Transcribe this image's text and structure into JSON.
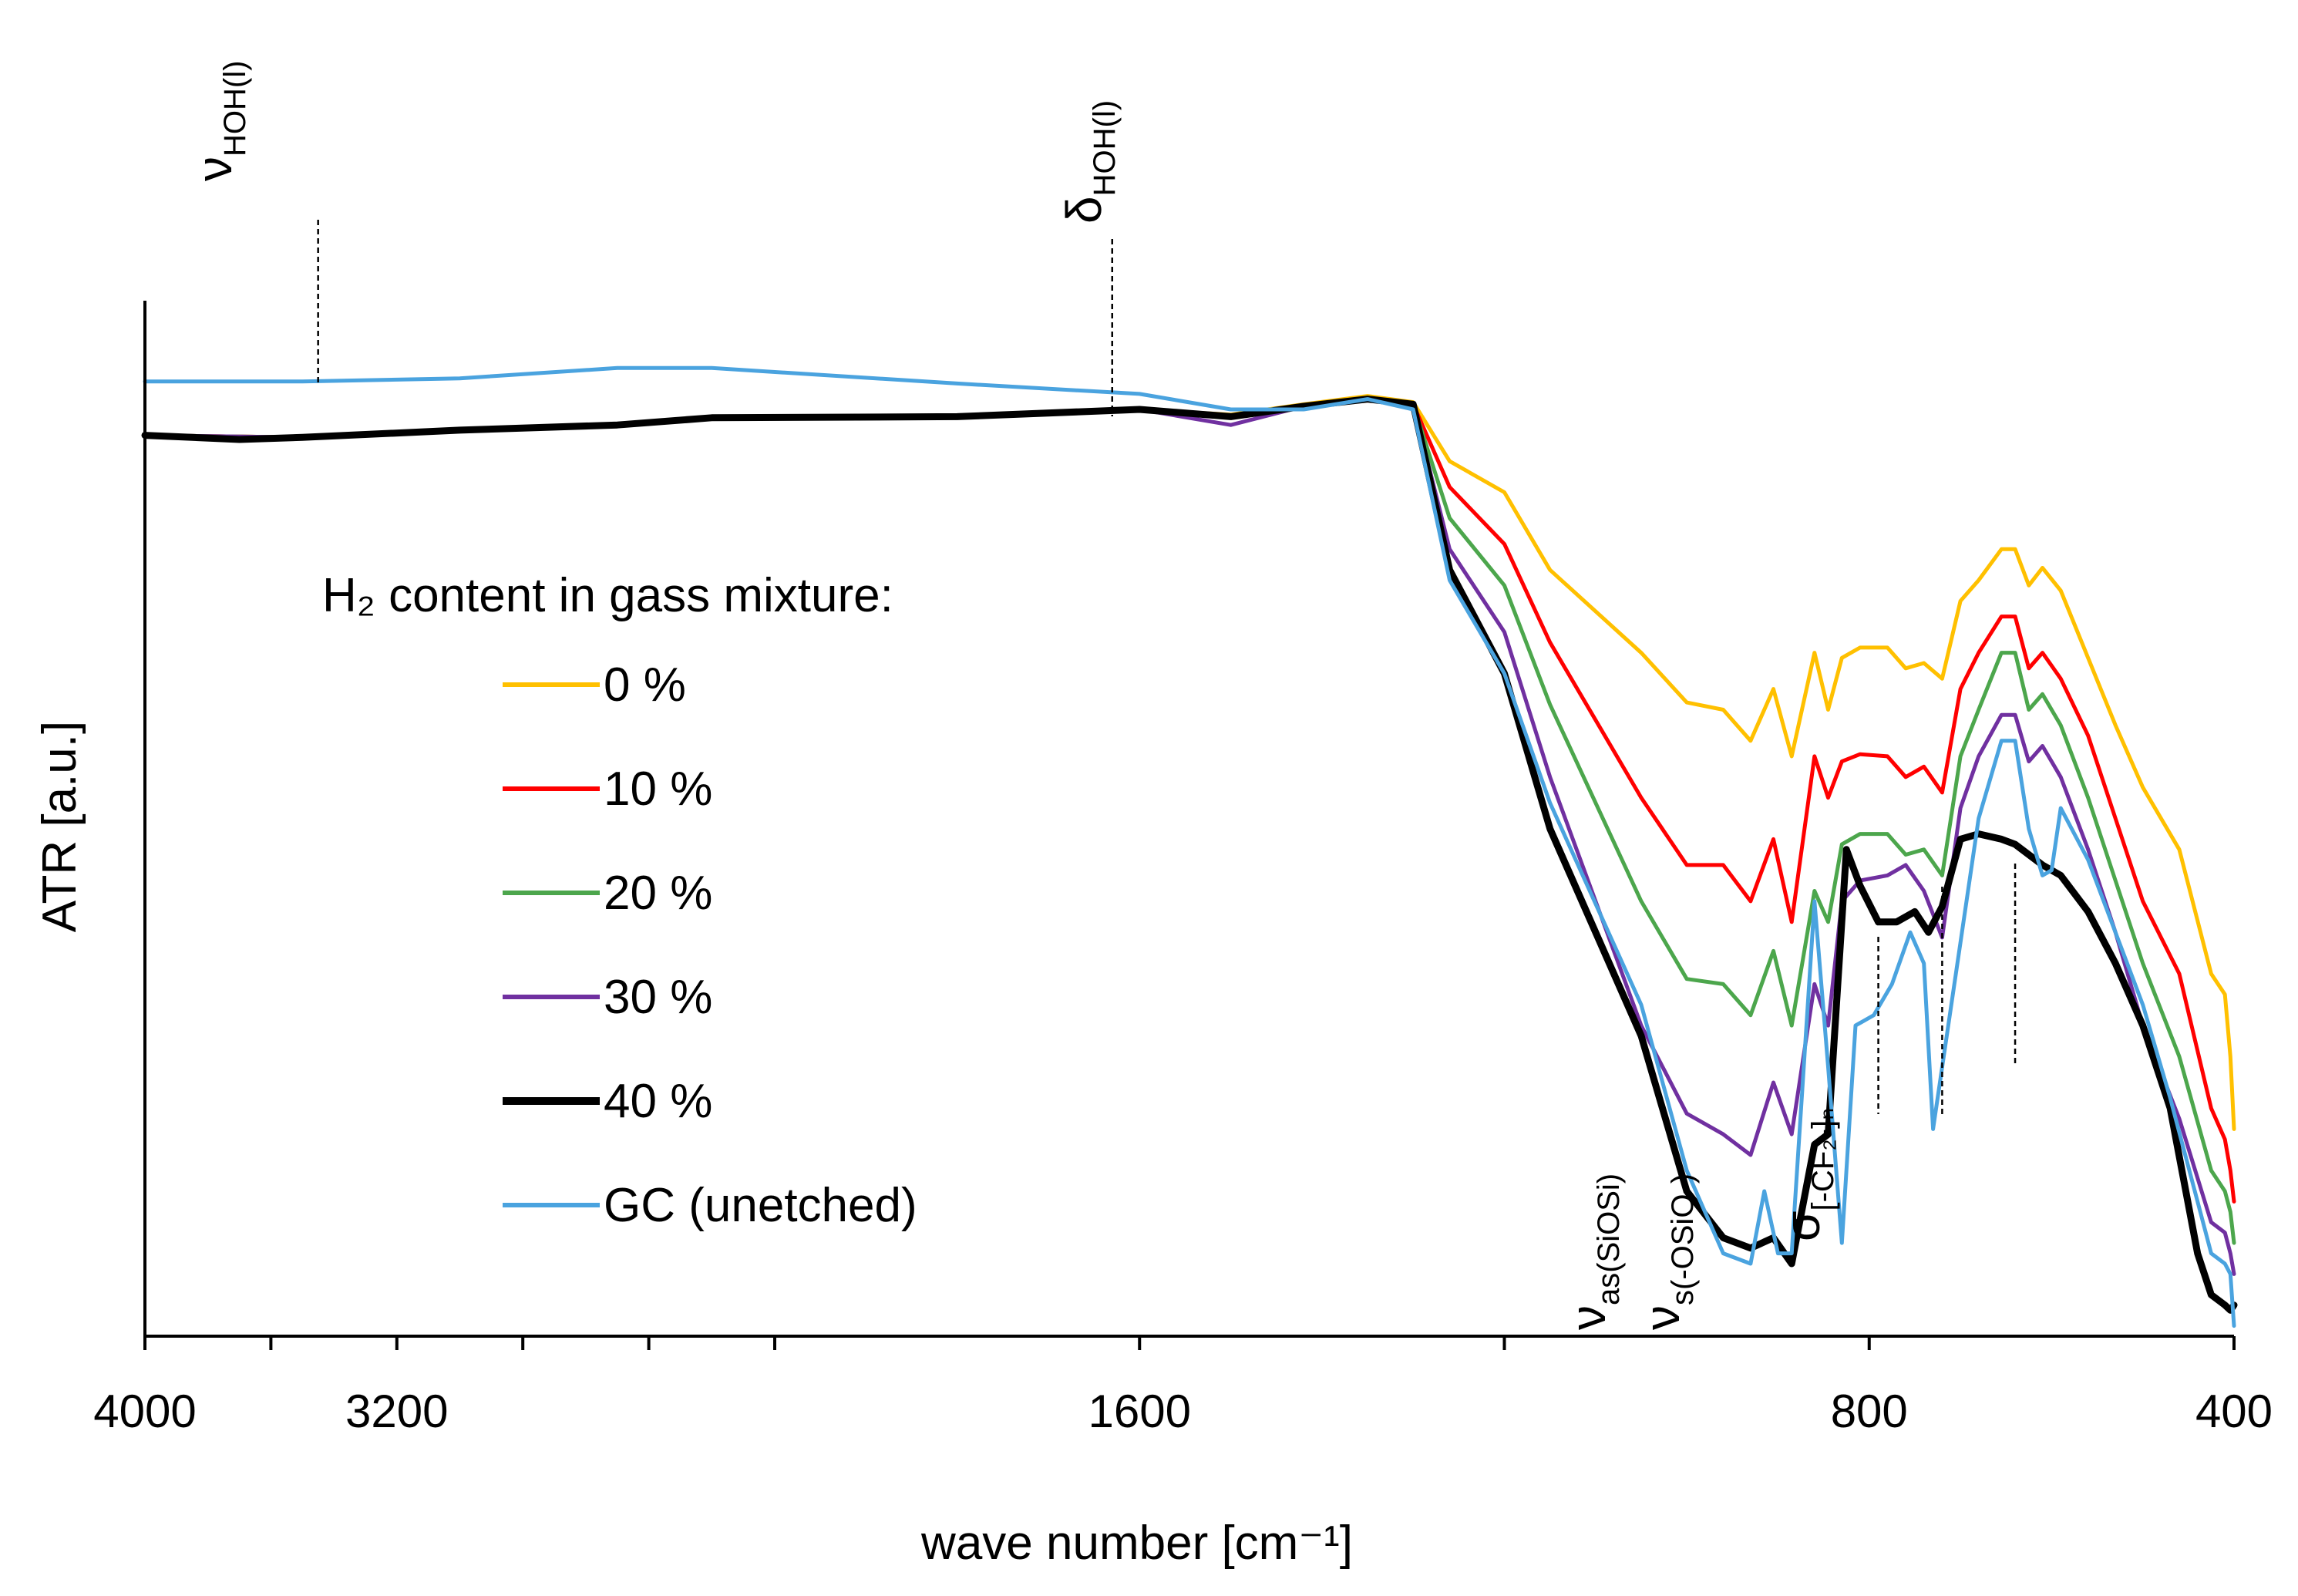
{
  "chart_data": {
    "type": "line",
    "title": "",
    "xlabel": "wave number [cm⁻¹]",
    "ylabel": "ATR [a.u.]",
    "xlim": [
      4000,
      400
    ],
    "ylim": [
      0,
      1
    ],
    "x_scale": "piecewise",
    "x_ticks": [
      4000,
      3200,
      1600,
      800,
      400
    ],
    "x_tick_labels": [
      "4000",
      "3200",
      "1600",
      "800",
      "400"
    ],
    "legend_title": "H₂ content in gass mixture:",
    "legend_position": "center-left",
    "annotations": [
      {
        "name": "nu-hoh",
        "main": "ν",
        "sub": "HOH(l)",
        "x": 3450
      },
      {
        "name": "delta-hoh",
        "main": "δ",
        "sub": "HOH(l)",
        "x": 1630
      },
      {
        "name": "nu-as-siosi",
        "main": "ν",
        "sub": "as(SiOSi)",
        "x": 790
      },
      {
        "name": "nu-s-osio",
        "main": "ν",
        "sub": "s(-OSiO-)",
        "x": 720
      },
      {
        "name": "sigma-cf2",
        "main": "σ",
        "sub": "[-CF₂-]ₙ",
        "x": 640
      }
    ],
    "series": [
      {
        "name": "0 %",
        "color": "#FFC000",
        "width": 5,
        "points": [
          [
            4000,
            0.87
          ],
          [
            3500,
            0.868
          ],
          [
            3000,
            0.875
          ],
          [
            2500,
            0.88
          ],
          [
            2200,
            0.887
          ],
          [
            1800,
            0.888
          ],
          [
            1600,
            0.895
          ],
          [
            1500,
            0.89
          ],
          [
            1420,
            0.9
          ],
          [
            1350,
            0.908
          ],
          [
            1300,
            0.902
          ],
          [
            1260,
            0.845
          ],
          [
            1200,
            0.815
          ],
          [
            1150,
            0.74
          ],
          [
            1050,
            0.66
          ],
          [
            1000,
            0.612
          ],
          [
            960,
            0.605
          ],
          [
            930,
            0.575
          ],
          [
            905,
            0.625
          ],
          [
            885,
            0.56
          ],
          [
            860,
            0.66
          ],
          [
            845,
            0.605
          ],
          [
            830,
            0.655
          ],
          [
            810,
            0.665
          ],
          [
            780,
            0.665
          ],
          [
            760,
            0.645
          ],
          [
            740,
            0.65
          ],
          [
            720,
            0.635
          ],
          [
            700,
            0.71
          ],
          [
            680,
            0.73
          ],
          [
            655,
            0.76
          ],
          [
            640,
            0.76
          ],
          [
            625,
            0.725
          ],
          [
            610,
            0.742
          ],
          [
            590,
            0.72
          ],
          [
            560,
            0.655
          ],
          [
            530,
            0.59
          ],
          [
            500,
            0.53
          ],
          [
            460,
            0.47
          ],
          [
            425,
            0.35
          ],
          [
            410,
            0.33
          ],
          [
            404,
            0.27
          ],
          [
            400,
            0.2
          ]
        ]
      },
      {
        "name": "10 %",
        "color": "#FF0000",
        "width": 5,
        "points": [
          [
            4000,
            0.87
          ],
          [
            3500,
            0.868
          ],
          [
            3000,
            0.875
          ],
          [
            2500,
            0.88
          ],
          [
            2200,
            0.887
          ],
          [
            1800,
            0.888
          ],
          [
            1600,
            0.895
          ],
          [
            1500,
            0.888
          ],
          [
            1420,
            0.898
          ],
          [
            1350,
            0.905
          ],
          [
            1300,
            0.9
          ],
          [
            1260,
            0.82
          ],
          [
            1200,
            0.765
          ],
          [
            1150,
            0.67
          ],
          [
            1050,
            0.52
          ],
          [
            1000,
            0.455
          ],
          [
            960,
            0.455
          ],
          [
            930,
            0.42
          ],
          [
            905,
            0.48
          ],
          [
            885,
            0.4
          ],
          [
            860,
            0.56
          ],
          [
            845,
            0.52
          ],
          [
            830,
            0.555
          ],
          [
            810,
            0.562
          ],
          [
            780,
            0.56
          ],
          [
            760,
            0.54
          ],
          [
            740,
            0.55
          ],
          [
            720,
            0.525
          ],
          [
            700,
            0.625
          ],
          [
            680,
            0.66
          ],
          [
            655,
            0.695
          ],
          [
            640,
            0.695
          ],
          [
            625,
            0.645
          ],
          [
            610,
            0.66
          ],
          [
            590,
            0.635
          ],
          [
            560,
            0.58
          ],
          [
            530,
            0.5
          ],
          [
            500,
            0.42
          ],
          [
            460,
            0.35
          ],
          [
            425,
            0.22
          ],
          [
            410,
            0.19
          ],
          [
            404,
            0.16
          ],
          [
            400,
            0.13
          ]
        ]
      },
      {
        "name": "20 %",
        "color": "#4CA64C",
        "width": 5,
        "points": [
          [
            4000,
            0.87
          ],
          [
            3500,
            0.868
          ],
          [
            3000,
            0.875
          ],
          [
            2500,
            0.88
          ],
          [
            2200,
            0.887
          ],
          [
            1800,
            0.888
          ],
          [
            1600,
            0.895
          ],
          [
            1500,
            0.888
          ],
          [
            1420,
            0.898
          ],
          [
            1350,
            0.905
          ],
          [
            1300,
            0.9
          ],
          [
            1260,
            0.79
          ],
          [
            1200,
            0.725
          ],
          [
            1150,
            0.61
          ],
          [
            1050,
            0.42
          ],
          [
            1000,
            0.345
          ],
          [
            960,
            0.34
          ],
          [
            930,
            0.31
          ],
          [
            905,
            0.372
          ],
          [
            885,
            0.3
          ],
          [
            860,
            0.43
          ],
          [
            845,
            0.4
          ],
          [
            830,
            0.475
          ],
          [
            810,
            0.485
          ],
          [
            780,
            0.485
          ],
          [
            760,
            0.465
          ],
          [
            740,
            0.47
          ],
          [
            720,
            0.445
          ],
          [
            700,
            0.56
          ],
          [
            680,
            0.605
          ],
          [
            655,
            0.66
          ],
          [
            640,
            0.66
          ],
          [
            625,
            0.605
          ],
          [
            610,
            0.62
          ],
          [
            590,
            0.59
          ],
          [
            560,
            0.52
          ],
          [
            530,
            0.44
          ],
          [
            500,
            0.36
          ],
          [
            460,
            0.27
          ],
          [
            425,
            0.16
          ],
          [
            410,
            0.14
          ],
          [
            404,
            0.12
          ],
          [
            400,
            0.09
          ]
        ]
      },
      {
        "name": "30 %",
        "color": "#7030A0",
        "width": 5,
        "points": [
          [
            4000,
            0.87
          ],
          [
            3500,
            0.868
          ],
          [
            3000,
            0.875
          ],
          [
            2500,
            0.88
          ],
          [
            2200,
            0.887
          ],
          [
            1800,
            0.888
          ],
          [
            1600,
            0.895
          ],
          [
            1500,
            0.88
          ],
          [
            1420,
            0.898
          ],
          [
            1350,
            0.905
          ],
          [
            1300,
            0.9
          ],
          [
            1260,
            0.76
          ],
          [
            1200,
            0.68
          ],
          [
            1150,
            0.54
          ],
          [
            1050,
            0.3
          ],
          [
            1000,
            0.215
          ],
          [
            960,
            0.195
          ],
          [
            930,
            0.175
          ],
          [
            905,
            0.245
          ],
          [
            885,
            0.195
          ],
          [
            860,
            0.34
          ],
          [
            845,
            0.3
          ],
          [
            830,
            0.42
          ],
          [
            810,
            0.44
          ],
          [
            780,
            0.445
          ],
          [
            760,
            0.455
          ],
          [
            740,
            0.43
          ],
          [
            720,
            0.385
          ],
          [
            700,
            0.51
          ],
          [
            680,
            0.56
          ],
          [
            655,
            0.6
          ],
          [
            640,
            0.6
          ],
          [
            625,
            0.555
          ],
          [
            610,
            0.57
          ],
          [
            590,
            0.54
          ],
          [
            560,
            0.47
          ],
          [
            530,
            0.39
          ],
          [
            500,
            0.3
          ],
          [
            460,
            0.21
          ],
          [
            425,
            0.11
          ],
          [
            410,
            0.1
          ],
          [
            404,
            0.08
          ],
          [
            400,
            0.06
          ]
        ]
      },
      {
        "name": "40 %",
        "color": "#000000",
        "width": 9,
        "points": [
          [
            4000,
            0.87
          ],
          [
            3700,
            0.866
          ],
          [
            3500,
            0.868
          ],
          [
            3000,
            0.875
          ],
          [
            2500,
            0.88
          ],
          [
            2200,
            0.887
          ],
          [
            1800,
            0.888
          ],
          [
            1600,
            0.895
          ],
          [
            1500,
            0.888
          ],
          [
            1420,
            0.898
          ],
          [
            1350,
            0.905
          ],
          [
            1300,
            0.9
          ],
          [
            1260,
            0.74
          ],
          [
            1200,
            0.64
          ],
          [
            1150,
            0.49
          ],
          [
            1050,
            0.29
          ],
          [
            1000,
            0.14
          ],
          [
            960,
            0.095
          ],
          [
            930,
            0.085
          ],
          [
            905,
            0.095
          ],
          [
            885,
            0.07
          ],
          [
            860,
            0.185
          ],
          [
            845,
            0.195
          ],
          [
            825,
            0.47
          ],
          [
            810,
            0.435
          ],
          [
            790,
            0.4
          ],
          [
            770,
            0.4
          ],
          [
            750,
            0.41
          ],
          [
            735,
            0.39
          ],
          [
            720,
            0.415
          ],
          [
            700,
            0.48
          ],
          [
            680,
            0.485
          ],
          [
            655,
            0.48
          ],
          [
            640,
            0.475
          ],
          [
            625,
            0.465
          ],
          [
            610,
            0.455
          ],
          [
            590,
            0.445
          ],
          [
            560,
            0.41
          ],
          [
            530,
            0.36
          ],
          [
            500,
            0.3
          ],
          [
            470,
            0.22
          ],
          [
            440,
            0.08
          ],
          [
            425,
            0.04
          ],
          [
            410,
            0.03
          ],
          [
            404,
            0.025
          ],
          [
            400,
            0.03
          ]
        ]
      },
      {
        "name": "GC (unetched)",
        "color": "#4AA3DF",
        "width": 5,
        "points": [
          [
            4000,
            0.922
          ],
          [
            3500,
            0.922
          ],
          [
            3000,
            0.925
          ],
          [
            2500,
            0.935
          ],
          [
            2200,
            0.935
          ],
          [
            1800,
            0.92
          ],
          [
            1600,
            0.91
          ],
          [
            1500,
            0.895
          ],
          [
            1420,
            0.895
          ],
          [
            1350,
            0.905
          ],
          [
            1300,
            0.895
          ],
          [
            1260,
            0.73
          ],
          [
            1200,
            0.64
          ],
          [
            1150,
            0.515
          ],
          [
            1050,
            0.32
          ],
          [
            1000,
            0.16
          ],
          [
            960,
            0.08
          ],
          [
            930,
            0.07
          ],
          [
            915,
            0.14
          ],
          [
            900,
            0.08
          ],
          [
            885,
            0.08
          ],
          [
            860,
            0.42
          ],
          [
            845,
            0.26
          ],
          [
            830,
            0.09
          ],
          [
            815,
            0.3
          ],
          [
            795,
            0.31
          ],
          [
            775,
            0.34
          ],
          [
            755,
            0.39
          ],
          [
            740,
            0.36
          ],
          [
            730,
            0.2
          ],
          [
            700,
            0.38
          ],
          [
            680,
            0.5
          ],
          [
            655,
            0.575
          ],
          [
            640,
            0.575
          ],
          [
            625,
            0.49
          ],
          [
            610,
            0.445
          ],
          [
            600,
            0.45
          ],
          [
            590,
            0.51
          ],
          [
            560,
            0.46
          ],
          [
            530,
            0.39
          ],
          [
            500,
            0.32
          ],
          [
            470,
            0.23
          ],
          [
            440,
            0.13
          ],
          [
            425,
            0.08
          ],
          [
            410,
            0.07
          ],
          [
            404,
            0.06
          ],
          [
            400,
            0.01
          ]
        ]
      }
    ]
  }
}
